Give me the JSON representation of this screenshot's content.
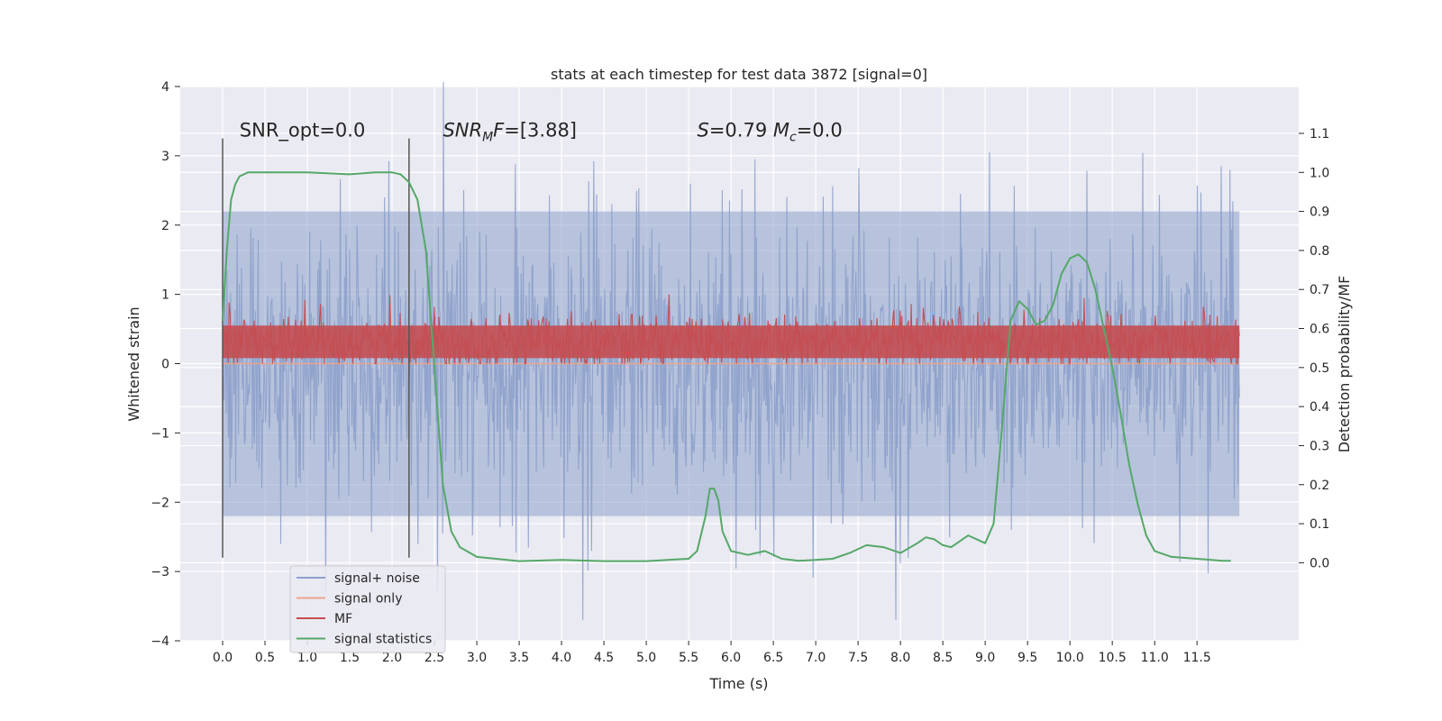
{
  "chart_data": {
    "type": "line",
    "title": "stats at each timestep for test data 3872 [signal=0]",
    "xlabel": "Time (s)",
    "ylabel": "Whitened strain",
    "y2label": "Detection probability/MF",
    "xlim": [
      -0.5,
      12.7
    ],
    "ylim": [
      -4.0,
      4.0
    ],
    "y2lim": [
      -0.2,
      1.22
    ],
    "x_ticks": [
      "0.0",
      "0.5",
      "1.0",
      "1.5",
      "2.0",
      "2.5",
      "3.0",
      "3.5",
      "4.0",
      "4.5",
      "5.0",
      "5.5",
      "6.0",
      "6.5",
      "7.0",
      "7.5",
      "8.0",
      "8.5",
      "9.0",
      "9.5",
      "10.0",
      "10.5",
      "11.0",
      "11.5"
    ],
    "x_tick_values": [
      0,
      0.5,
      1,
      1.5,
      2,
      2.5,
      3,
      3.5,
      4,
      4.5,
      5,
      5.5,
      6,
      6.5,
      7,
      7.5,
      8,
      8.5,
      9,
      9.5,
      10,
      10.5,
      11,
      11.5
    ],
    "y_ticks": [
      "4",
      "3",
      "2",
      "1",
      "0",
      "−1",
      "−2",
      "−3",
      "−4"
    ],
    "y_tick_values": [
      4,
      3,
      2,
      1,
      0,
      -1,
      -2,
      -3,
      -4
    ],
    "y2_ticks": [
      "1.1",
      "1.0",
      "0.9",
      "0.8",
      "0.7",
      "0.6",
      "0.5",
      "0.4",
      "0.3",
      "0.2",
      "0.1",
      "0.0"
    ],
    "y2_tick_values": [
      1.1,
      1.0,
      0.9,
      0.8,
      0.7,
      0.6,
      0.5,
      0.4,
      0.3,
      0.2,
      0.1,
      0.0
    ],
    "grid": true,
    "legend_position": "lower-left",
    "series": [
      {
        "name": "signal+ noise",
        "axis": "left",
        "color": "#8da0cb",
        "style": "noise",
        "x_range": [
          0.0,
          12.0
        ],
        "y_range": [
          -3.7,
          4.1
        ],
        "band": [
          -2.2,
          2.2
        ],
        "typical_std": 1.0
      },
      {
        "name": "signal only",
        "axis": "left",
        "color": "#e8a58f",
        "x": [
          0.0,
          12.0
        ],
        "y": [
          0.0,
          0.0
        ]
      },
      {
        "name": "MF",
        "axis": "left",
        "color": "#c44e52",
        "style": "noise",
        "x_range": [
          0.0,
          12.0
        ],
        "y_range": [
          0.0,
          1.0
        ],
        "band": [
          0.0,
          0.8
        ]
      },
      {
        "name": "signal statistics",
        "axis": "right",
        "color": "#55a868",
        "x": [
          0.0,
          0.05,
          0.1,
          0.15,
          0.2,
          0.3,
          0.5,
          1.0,
          1.5,
          1.8,
          2.0,
          2.1,
          2.2,
          2.3,
          2.4,
          2.5,
          2.6,
          2.7,
          2.8,
          3.0,
          3.5,
          4.0,
          4.5,
          5.0,
          5.5,
          5.6,
          5.7,
          5.75,
          5.8,
          5.85,
          5.9,
          6.0,
          6.2,
          6.4,
          6.6,
          6.8,
          7.0,
          7.2,
          7.4,
          7.6,
          7.8,
          8.0,
          8.2,
          8.3,
          8.4,
          8.5,
          8.6,
          8.7,
          8.8,
          9.0,
          9.1,
          9.2,
          9.3,
          9.4,
          9.5,
          9.6,
          9.7,
          9.8,
          9.9,
          10.0,
          10.1,
          10.2,
          10.3,
          10.4,
          10.5,
          10.6,
          10.7,
          10.8,
          10.9,
          11.0,
          11.2,
          11.5,
          11.8,
          11.9
        ],
        "y": [
          0.62,
          0.8,
          0.93,
          0.97,
          0.99,
          1.0,
          1.0,
          1.0,
          0.995,
          1.0,
          1.0,
          0.995,
          0.975,
          0.93,
          0.8,
          0.5,
          0.2,
          0.08,
          0.04,
          0.015,
          0.004,
          0.007,
          0.004,
          0.004,
          0.01,
          0.03,
          0.12,
          0.19,
          0.19,
          0.16,
          0.08,
          0.03,
          0.02,
          0.03,
          0.01,
          0.005,
          0.007,
          0.01,
          0.025,
          0.045,
          0.04,
          0.025,
          0.05,
          0.065,
          0.06,
          0.045,
          0.04,
          0.055,
          0.07,
          0.05,
          0.1,
          0.35,
          0.62,
          0.67,
          0.65,
          0.61,
          0.62,
          0.66,
          0.74,
          0.78,
          0.79,
          0.77,
          0.7,
          0.6,
          0.5,
          0.38,
          0.25,
          0.15,
          0.07,
          0.03,
          0.015,
          0.01,
          0.005,
          0.005
        ]
      }
    ],
    "vlines": [
      {
        "x": 0.0,
        "y_from": -2.8,
        "y_to": 3.25
      },
      {
        "x": 2.2,
        "y_from": -2.8,
        "y_to": 3.25
      }
    ],
    "annotations": [
      {
        "text": "SNR_opt=0.0",
        "x": 0.2,
        "y": 3.25
      },
      {
        "text": "SNR_MF=[3.88]",
        "x": 2.6,
        "y": 3.25
      },
      {
        "text": "S=0.79   M_c=0.0",
        "x": 5.6,
        "y": 3.25
      }
    ]
  }
}
